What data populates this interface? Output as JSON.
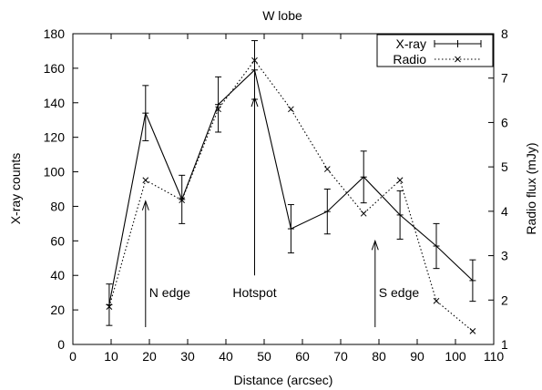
{
  "chart_data": {
    "type": "line",
    "title": "W lobe",
    "xlabel": "Distance (arcsec)",
    "ylabel_left": "X-ray counts",
    "ylabel_right": "Radio flux (mJy)",
    "xlim": [
      0,
      110
    ],
    "ylim_left": [
      0,
      180
    ],
    "ylim_right": [
      1,
      8
    ],
    "xticks": [
      0,
      10,
      20,
      30,
      40,
      50,
      60,
      70,
      80,
      90,
      100,
      110
    ],
    "yticks_left": [
      0,
      20,
      40,
      60,
      80,
      100,
      120,
      140,
      160,
      180
    ],
    "yticks_right": [
      1,
      2,
      3,
      4,
      5,
      6,
      7,
      8
    ],
    "grid": false,
    "legend_position": "top-right",
    "series": [
      {
        "name": "X-ray",
        "axis": "left",
        "style": "solid",
        "color": "#000000",
        "x": [
          9.5,
          19,
          28.5,
          38,
          47.5,
          57,
          66.5,
          76,
          85.5,
          95,
          104.5
        ],
        "y": [
          23,
          134,
          84,
          139,
          159,
          67,
          77,
          97,
          75,
          57,
          37
        ],
        "err": [
          12,
          16,
          14,
          16,
          17,
          14,
          13,
          15,
          14,
          13,
          12
        ]
      },
      {
        "name": "Radio",
        "axis": "right",
        "style": "dotted",
        "color": "#000000",
        "x": [
          9.5,
          19,
          28.5,
          38,
          47.5,
          57,
          66.5,
          76,
          85.5,
          95,
          104.5
        ],
        "y": [
          1.85,
          4.7,
          4.25,
          6.3,
          7.4,
          6.3,
          4.95,
          3.95,
          4.7,
          1.98,
          1.3
        ]
      }
    ],
    "annotations": [
      {
        "text": "N edge",
        "arrow_x": 19,
        "arrow_y_from": 10,
        "arrow_y_to": 83,
        "text_x": 19,
        "text_y": 30
      },
      {
        "text": "Hotspot",
        "arrow_x": 47.5,
        "arrow_y_from": 40,
        "arrow_y_to": 143,
        "text_x": 47.5,
        "text_y": 30
      },
      {
        "text": "S edge",
        "arrow_x": 79,
        "arrow_y_from": 10,
        "arrow_y_to": 60,
        "text_x": 79,
        "text_y": 30
      }
    ]
  }
}
